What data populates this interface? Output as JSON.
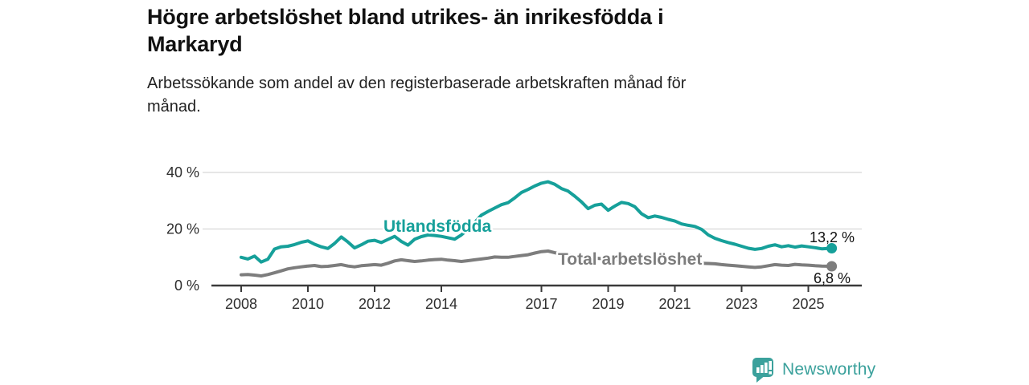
{
  "header": {
    "title_line1": "Högre arbetslöshet bland utrikes- än inrikesfödda i",
    "title_line2": "Markaryd",
    "subtitle_line1": "Arbetssökande som andel av den registerbaserade arbetskraften månad för",
    "subtitle_line2": "månad."
  },
  "chart_data": {
    "type": "line",
    "title": "Högre arbetslöshet bland utrikes- än inrikesfödda i Markaryd",
    "subtitle": "Arbetssökande som andel av den registerbaserade arbetskraften månad för månad.",
    "xlabel": "",
    "ylabel": "",
    "ylim": [
      0,
      40
    ],
    "xlim": [
      2007,
      2026.5
    ],
    "grid": "horizontal",
    "legend_position": "inline-labels",
    "y_ticks": [
      {
        "value": 0,
        "label": "0 %"
      },
      {
        "value": 20,
        "label": "20 %"
      },
      {
        "value": 40,
        "label": "40 %"
      }
    ],
    "x_ticks": [
      {
        "value": 2008,
        "label": "2008"
      },
      {
        "value": 2010,
        "label": "2010"
      },
      {
        "value": 2012,
        "label": "2012"
      },
      {
        "value": 2014,
        "label": "2014"
      },
      {
        "value": 2017,
        "label": "2017"
      },
      {
        "value": 2019,
        "label": "2019"
      },
      {
        "value": 2021,
        "label": "2021"
      },
      {
        "value": 2023,
        "label": "2023"
      },
      {
        "value": 2025,
        "label": "2025"
      }
    ],
    "series": [
      {
        "name": "Utlandsfödda",
        "color": "#16a09a",
        "end_label": "13,2 %",
        "end_value": 13.2,
        "points": [
          [
            2008.0,
            10.0
          ],
          [
            2008.2,
            9.4
          ],
          [
            2008.4,
            10.4
          ],
          [
            2008.6,
            8.3
          ],
          [
            2008.8,
            9.3
          ],
          [
            2009.0,
            12.9
          ],
          [
            2009.2,
            13.7
          ],
          [
            2009.4,
            13.9
          ],
          [
            2009.6,
            14.5
          ],
          [
            2009.8,
            15.3
          ],
          [
            2010.0,
            15.8
          ],
          [
            2010.2,
            14.6
          ],
          [
            2010.4,
            13.7
          ],
          [
            2010.6,
            13.1
          ],
          [
            2010.8,
            14.9
          ],
          [
            2011.0,
            17.2
          ],
          [
            2011.2,
            15.4
          ],
          [
            2011.4,
            13.3
          ],
          [
            2011.6,
            14.4
          ],
          [
            2011.8,
            15.7
          ],
          [
            2012.0,
            16.0
          ],
          [
            2012.2,
            15.2
          ],
          [
            2012.4,
            16.3
          ],
          [
            2012.6,
            17.4
          ],
          [
            2012.8,
            15.6
          ],
          [
            2013.0,
            14.3
          ],
          [
            2013.2,
            16.4
          ],
          [
            2013.4,
            17.3
          ],
          [
            2013.6,
            17.9
          ],
          [
            2013.8,
            17.7
          ],
          [
            2014.0,
            17.4
          ],
          [
            2014.2,
            16.9
          ],
          [
            2014.4,
            16.4
          ],
          [
            2014.6,
            17.9
          ],
          [
            2014.8,
            19.9
          ],
          [
            2015.0,
            22.3
          ],
          [
            2015.2,
            24.9
          ],
          [
            2015.4,
            26.2
          ],
          [
            2015.6,
            27.4
          ],
          [
            2015.8,
            28.6
          ],
          [
            2016.0,
            29.3
          ],
          [
            2016.2,
            31.0
          ],
          [
            2016.4,
            32.9
          ],
          [
            2016.6,
            34.0
          ],
          [
            2016.8,
            35.2
          ],
          [
            2017.0,
            36.2
          ],
          [
            2017.2,
            36.7
          ],
          [
            2017.4,
            35.8
          ],
          [
            2017.6,
            34.3
          ],
          [
            2017.8,
            33.4
          ],
          [
            2018.0,
            31.6
          ],
          [
            2018.2,
            29.6
          ],
          [
            2018.4,
            27.2
          ],
          [
            2018.6,
            28.4
          ],
          [
            2018.8,
            28.8
          ],
          [
            2019.0,
            26.6
          ],
          [
            2019.2,
            28.1
          ],
          [
            2019.4,
            29.4
          ],
          [
            2019.6,
            29.0
          ],
          [
            2019.8,
            27.9
          ],
          [
            2020.0,
            25.4
          ],
          [
            2020.2,
            24.0
          ],
          [
            2020.4,
            24.6
          ],
          [
            2020.6,
            24.1
          ],
          [
            2020.8,
            23.4
          ],
          [
            2021.0,
            22.8
          ],
          [
            2021.2,
            21.8
          ],
          [
            2021.4,
            21.3
          ],
          [
            2021.6,
            20.9
          ],
          [
            2021.8,
            19.9
          ],
          [
            2022.0,
            17.9
          ],
          [
            2022.2,
            16.7
          ],
          [
            2022.4,
            15.9
          ],
          [
            2022.6,
            15.2
          ],
          [
            2022.8,
            14.6
          ],
          [
            2023.0,
            13.9
          ],
          [
            2023.2,
            13.2
          ],
          [
            2023.4,
            12.8
          ],
          [
            2023.6,
            13.1
          ],
          [
            2023.8,
            13.9
          ],
          [
            2024.0,
            14.4
          ],
          [
            2024.2,
            13.7
          ],
          [
            2024.4,
            14.1
          ],
          [
            2024.6,
            13.6
          ],
          [
            2024.8,
            14.0
          ],
          [
            2025.0,
            13.7
          ],
          [
            2025.2,
            13.4
          ],
          [
            2025.4,
            13.0
          ],
          [
            2025.7,
            13.2
          ]
        ]
      },
      {
        "name": "Total arbetslöshet",
        "color": "#7d7d7d",
        "end_label": "6,8 %",
        "end_value": 6.8,
        "points": [
          [
            2008.0,
            3.8
          ],
          [
            2008.2,
            3.9
          ],
          [
            2008.4,
            3.7
          ],
          [
            2008.6,
            3.4
          ],
          [
            2008.8,
            3.9
          ],
          [
            2009.0,
            4.5
          ],
          [
            2009.2,
            5.2
          ],
          [
            2009.4,
            5.9
          ],
          [
            2009.6,
            6.3
          ],
          [
            2009.8,
            6.6
          ],
          [
            2010.0,
            6.9
          ],
          [
            2010.2,
            7.1
          ],
          [
            2010.4,
            6.7
          ],
          [
            2010.6,
            6.8
          ],
          [
            2010.8,
            7.1
          ],
          [
            2011.0,
            7.4
          ],
          [
            2011.2,
            6.9
          ],
          [
            2011.4,
            6.6
          ],
          [
            2011.6,
            7.0
          ],
          [
            2011.8,
            7.2
          ],
          [
            2012.0,
            7.4
          ],
          [
            2012.2,
            7.2
          ],
          [
            2012.4,
            7.9
          ],
          [
            2012.6,
            8.7
          ],
          [
            2012.8,
            9.1
          ],
          [
            2013.0,
            8.8
          ],
          [
            2013.2,
            8.5
          ],
          [
            2013.4,
            8.7
          ],
          [
            2013.6,
            9.0
          ],
          [
            2013.8,
            9.2
          ],
          [
            2014.0,
            9.3
          ],
          [
            2014.2,
            9.0
          ],
          [
            2014.4,
            8.8
          ],
          [
            2014.6,
            8.5
          ],
          [
            2014.8,
            8.8
          ],
          [
            2015.0,
            9.1
          ],
          [
            2015.2,
            9.4
          ],
          [
            2015.4,
            9.7
          ],
          [
            2015.6,
            10.1
          ],
          [
            2015.8,
            10.0
          ],
          [
            2016.0,
            10.0
          ],
          [
            2016.2,
            10.3
          ],
          [
            2016.4,
            10.6
          ],
          [
            2016.6,
            10.9
          ],
          [
            2016.8,
            11.5
          ],
          [
            2017.0,
            12.0
          ],
          [
            2017.2,
            12.2
          ],
          [
            2017.4,
            11.6
          ],
          [
            2017.6,
            11.2
          ],
          [
            2017.8,
            10.8
          ],
          [
            2018.0,
            10.4
          ],
          [
            2018.2,
            10.1
          ],
          [
            2018.4,
            9.8
          ],
          [
            2018.6,
            9.7
          ],
          [
            2018.8,
            9.5
          ],
          [
            2019.0,
            9.3
          ],
          [
            2019.2,
            9.1
          ],
          [
            2019.4,
            9.0
          ],
          [
            2019.6,
            8.9
          ],
          [
            2019.8,
            8.8
          ],
          [
            2020.0,
            8.7
          ],
          [
            2020.2,
            8.6
          ],
          [
            2020.4,
            8.6
          ],
          [
            2020.6,
            8.5
          ],
          [
            2020.8,
            8.4
          ],
          [
            2021.0,
            8.3
          ],
          [
            2021.2,
            8.2
          ],
          [
            2021.4,
            8.1
          ],
          [
            2021.6,
            8.0
          ],
          [
            2021.8,
            7.9
          ],
          [
            2022.0,
            7.8
          ],
          [
            2022.2,
            7.7
          ],
          [
            2022.4,
            7.4
          ],
          [
            2022.6,
            7.2
          ],
          [
            2022.8,
            7.0
          ],
          [
            2023.0,
            6.8
          ],
          [
            2023.2,
            6.6
          ],
          [
            2023.4,
            6.4
          ],
          [
            2023.6,
            6.6
          ],
          [
            2023.8,
            7.0
          ],
          [
            2024.0,
            7.4
          ],
          [
            2024.2,
            7.2
          ],
          [
            2024.4,
            7.1
          ],
          [
            2024.6,
            7.5
          ],
          [
            2024.8,
            7.3
          ],
          [
            2025.0,
            7.2
          ],
          [
            2025.2,
            7.0
          ],
          [
            2025.4,
            6.9
          ],
          [
            2025.7,
            6.8
          ]
        ]
      }
    ]
  },
  "branding": {
    "logo_text": "Newsworthy",
    "logo_icon": "speech-bubble-bar-chart-icon",
    "logo_color": "#3ba19c"
  },
  "colors": {
    "accent_teal": "#16a09a",
    "series_gray": "#7d7d7d",
    "axis": "#3a3a3a",
    "grid": "#d7d7d7",
    "title_text": "#111111"
  }
}
